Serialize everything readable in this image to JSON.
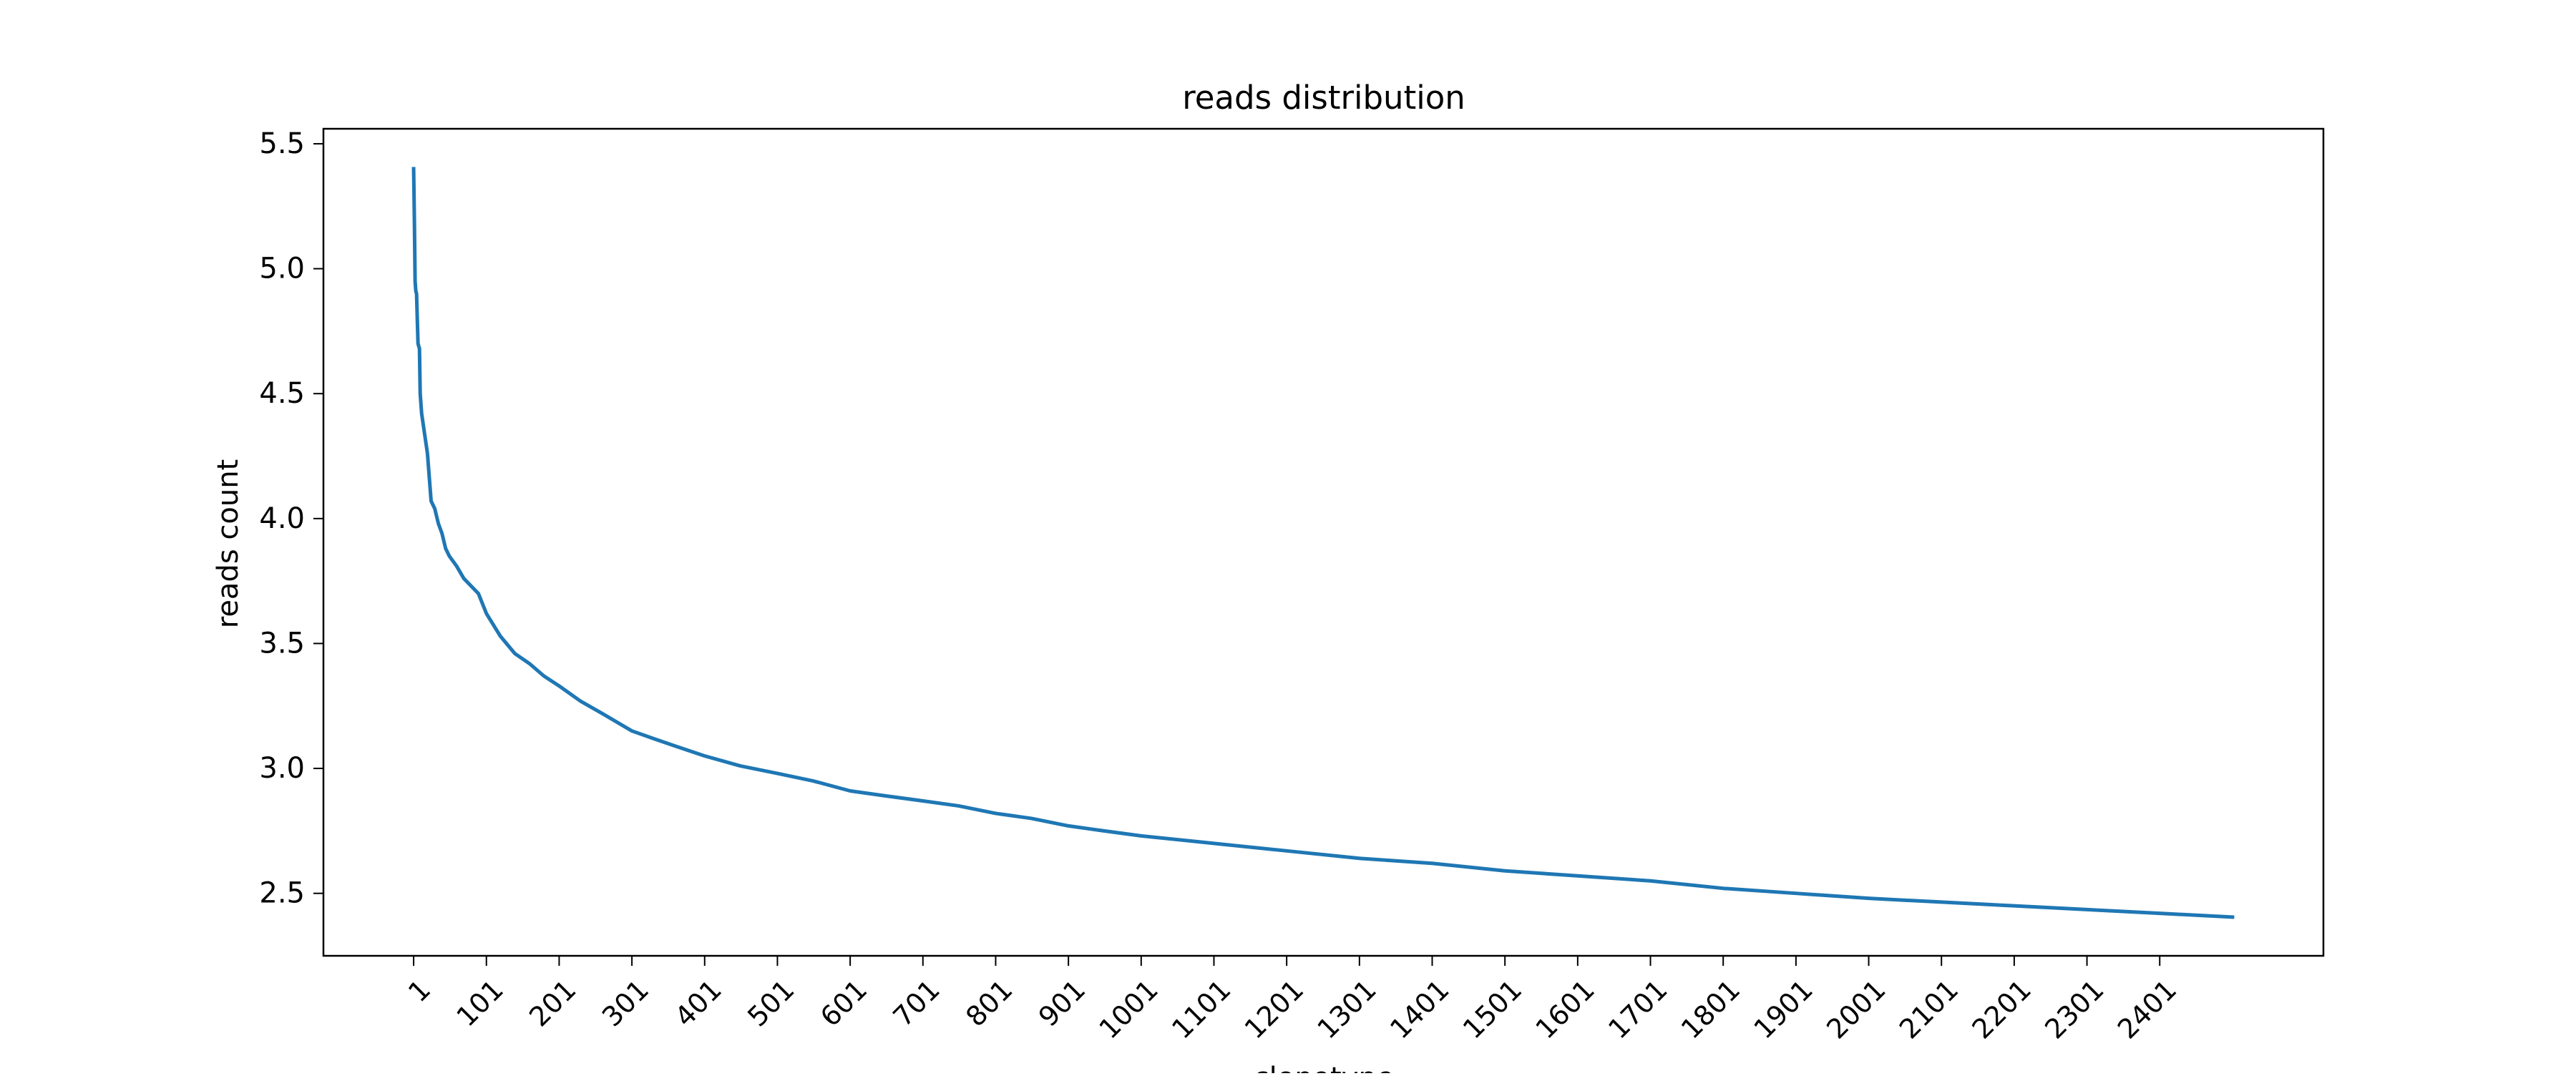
{
  "chart_data": {
    "type": "line",
    "title": "reads distribution",
    "xlabel": "clonotype",
    "ylabel": "reads count",
    "xlim": [
      -123,
      2626
    ],
    "ylim": [
      2.25,
      5.56
    ],
    "x_ticks": [
      1,
      101,
      201,
      301,
      401,
      501,
      601,
      701,
      801,
      901,
      1001,
      1101,
      1201,
      1301,
      1401,
      1501,
      1601,
      1701,
      1801,
      1901,
      2001,
      2101,
      2201,
      2301,
      2401
    ],
    "x_tick_labels": [
      "1",
      "101",
      "201",
      "301",
      "401",
      "501",
      "601",
      "701",
      "801",
      "901",
      "1001",
      "1101",
      "1201",
      "1301",
      "1401",
      "1501",
      "1601",
      "1701",
      "1801",
      "1901",
      "2001",
      "2101",
      "2201",
      "2301",
      "2401"
    ],
    "y_ticks": [
      2.5,
      3.0,
      3.5,
      4.0,
      4.5,
      5.0,
      5.5
    ],
    "y_tick_labels": [
      "2.5",
      "3.0",
      "3.5",
      "4.0",
      "4.5",
      "5.0",
      "5.5"
    ],
    "grid": false,
    "color": "#1f77b4",
    "series": [
      {
        "x": [
          1,
          2,
          3,
          4,
          5,
          7,
          9,
          10,
          12,
          14,
          16,
          20,
          25,
          30,
          35,
          40,
          45,
          50,
          60,
          70,
          80,
          90,
          101,
          120,
          140,
          160,
          180,
          201,
          230,
          260,
          301,
          330,
          360,
          401,
          450,
          501,
          550,
          601,
          650,
          701,
          750,
          801,
          850,
          901,
          950,
          1001,
          1101,
          1201,
          1301,
          1401,
          1501,
          1601,
          1701,
          1801,
          1901,
          2001,
          2101,
          2201,
          2301,
          2401,
          2501
        ],
        "y": [
          5.4,
          5.2,
          4.95,
          4.91,
          4.9,
          4.7,
          4.68,
          4.5,
          4.42,
          4.38,
          4.34,
          4.26,
          4.07,
          4.04,
          3.98,
          3.94,
          3.88,
          3.85,
          3.81,
          3.76,
          3.73,
          3.7,
          3.62,
          3.53,
          3.46,
          3.42,
          3.37,
          3.33,
          3.27,
          3.22,
          3.15,
          3.12,
          3.09,
          3.05,
          3.01,
          2.98,
          2.95,
          2.91,
          2.89,
          2.87,
          2.85,
          2.82,
          2.8,
          2.77,
          2.75,
          2.73,
          2.7,
          2.67,
          2.64,
          2.62,
          2.59,
          2.57,
          2.55,
          2.52,
          2.5,
          2.48,
          2.465,
          2.45,
          2.435,
          2.42,
          2.405
        ]
      }
    ]
  }
}
